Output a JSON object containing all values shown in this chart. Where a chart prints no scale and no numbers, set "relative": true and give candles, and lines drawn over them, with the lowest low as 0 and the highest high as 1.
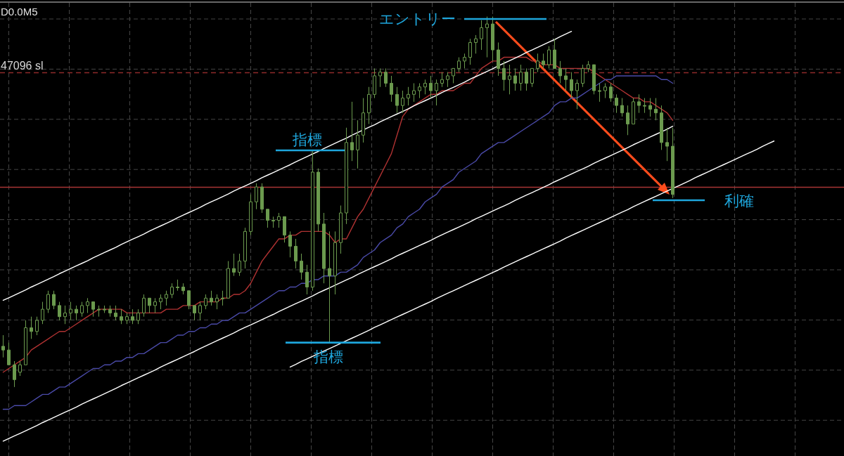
{
  "chart_data": {
    "type": "candlestick",
    "relative": true,
    "title": "D0.0M5",
    "grid": true,
    "color": "#6b9a4e",
    "categories": [
      null,
      null,
      null,
      null,
      null,
      null,
      null,
      null,
      null,
      null,
      null,
      null,
      null,
      null,
      null,
      null,
      null,
      null,
      null,
      null,
      null,
      null,
      null,
      null,
      null,
      null,
      null,
      null,
      null,
      null,
      null,
      null,
      null,
      null,
      null,
      null,
      null,
      null,
      null,
      null,
      null,
      null,
      null,
      null,
      null,
      null,
      null,
      null,
      null,
      null,
      null,
      null,
      null,
      null,
      null,
      null,
      null,
      null,
      null,
      null,
      null,
      null,
      null,
      null,
      null,
      null,
      null,
      null,
      null,
      null,
      null,
      null,
      null,
      null,
      null,
      null,
      null,
      null,
      null,
      null,
      null,
      null,
      null,
      null,
      null,
      null,
      null,
      null,
      null,
      null,
      null,
      null,
      null,
      null,
      null,
      null,
      null,
      null,
      null,
      null,
      null,
      null,
      null,
      null,
      null,
      null,
      null,
      null,
      null,
      null,
      null,
      null,
      null,
      null,
      null,
      null,
      null,
      null,
      null,
      null,
      null,
      null,
      null,
      null,
      null,
      null,
      null,
      null,
      null,
      null,
      null,
      null,
      null,
      null,
      null,
      null,
      null,
      null,
      null,
      null,
      null,
      null,
      null,
      null,
      null,
      null,
      null,
      null,
      null,
      null
    ],
    "ohlc": [
      [
        0.11,
        0.14,
        0.08,
        0.1
      ],
      [
        0.1,
        0.12,
        0.06,
        0.06
      ],
      [
        0.06,
        0.07,
        0.0,
        0.02
      ],
      [
        0.04,
        0.07,
        0.03,
        0.06
      ],
      [
        0.06,
        0.18,
        0.06,
        0.16
      ],
      [
        0.16,
        0.19,
        0.13,
        0.15
      ],
      [
        0.15,
        0.19,
        0.14,
        0.18
      ],
      [
        0.18,
        0.23,
        0.17,
        0.21
      ],
      [
        0.21,
        0.26,
        0.2,
        0.25
      ],
      [
        0.25,
        0.26,
        0.21,
        0.22
      ],
      [
        0.22,
        0.23,
        0.18,
        0.19
      ],
      [
        0.19,
        0.22,
        0.17,
        0.2
      ],
      [
        0.2,
        0.23,
        0.18,
        0.21
      ],
      [
        0.21,
        0.22,
        0.18,
        0.2
      ],
      [
        0.2,
        0.23,
        0.19,
        0.22
      ],
      [
        0.22,
        0.24,
        0.2,
        0.23
      ],
      [
        0.23,
        0.23,
        0.19,
        0.21
      ],
      [
        0.21,
        0.22,
        0.19,
        0.21
      ],
      [
        0.21,
        0.22,
        0.2,
        0.21
      ],
      [
        0.21,
        0.22,
        0.19,
        0.2
      ],
      [
        0.2,
        0.22,
        0.18,
        0.19
      ],
      [
        0.19,
        0.21,
        0.17,
        0.18
      ],
      [
        0.18,
        0.2,
        0.17,
        0.19
      ],
      [
        0.19,
        0.21,
        0.17,
        0.18
      ],
      [
        0.18,
        0.21,
        0.17,
        0.2
      ],
      [
        0.2,
        0.25,
        0.19,
        0.24
      ],
      [
        0.24,
        0.24,
        0.2,
        0.22
      ],
      [
        0.22,
        0.24,
        0.2,
        0.23
      ],
      [
        0.23,
        0.25,
        0.21,
        0.24
      ],
      [
        0.24,
        0.26,
        0.22,
        0.25
      ],
      [
        0.25,
        0.28,
        0.24,
        0.27
      ],
      [
        0.27,
        0.29,
        0.26,
        0.27
      ],
      [
        0.27,
        0.28,
        0.25,
        0.26
      ],
      [
        0.26,
        0.26,
        0.21,
        0.22
      ],
      [
        0.22,
        0.22,
        0.18,
        0.2
      ],
      [
        0.2,
        0.23,
        0.18,
        0.22
      ],
      [
        0.22,
        0.25,
        0.21,
        0.24
      ],
      [
        0.24,
        0.26,
        0.22,
        0.23
      ],
      [
        0.23,
        0.25,
        0.21,
        0.24
      ],
      [
        0.24,
        0.26,
        0.22,
        0.24
      ],
      [
        0.24,
        0.34,
        0.24,
        0.32
      ],
      [
        0.32,
        0.36,
        0.3,
        0.31
      ],
      [
        0.31,
        0.36,
        0.3,
        0.34
      ],
      [
        0.34,
        0.43,
        0.32,
        0.42
      ],
      [
        0.42,
        0.52,
        0.41,
        0.5
      ],
      [
        0.5,
        0.55,
        0.48,
        0.54
      ],
      [
        0.54,
        0.55,
        0.47,
        0.48
      ],
      [
        0.48,
        0.48,
        0.43,
        0.45
      ],
      [
        0.45,
        0.46,
        0.43,
        0.45
      ],
      [
        0.45,
        0.47,
        0.43,
        0.46
      ],
      [
        0.46,
        0.46,
        0.39,
        0.41
      ],
      [
        0.41,
        0.42,
        0.35,
        0.38
      ],
      [
        0.38,
        0.4,
        0.32,
        0.34
      ],
      [
        0.34,
        0.36,
        0.29,
        0.31
      ],
      [
        0.31,
        0.33,
        0.25,
        0.27
      ],
      [
        0.27,
        0.64,
        0.26,
        0.58
      ],
      [
        0.58,
        0.59,
        0.42,
        0.44
      ],
      [
        0.44,
        0.47,
        0.28,
        0.32
      ],
      [
        0.32,
        0.42,
        0.12,
        0.3
      ],
      [
        0.3,
        0.42,
        0.25,
        0.39
      ],
      [
        0.39,
        0.49,
        0.36,
        0.47
      ],
      [
        0.47,
        0.7,
        0.44,
        0.66
      ],
      [
        0.66,
        0.77,
        0.61,
        0.64
      ],
      [
        0.64,
        0.72,
        0.59,
        0.68
      ],
      [
        0.68,
        0.78,
        0.66,
        0.74
      ],
      [
        0.74,
        0.81,
        0.71,
        0.79
      ],
      [
        0.79,
        0.86,
        0.78,
        0.84
      ],
      [
        0.84,
        0.86,
        0.81,
        0.85
      ],
      [
        0.85,
        0.86,
        0.81,
        0.82
      ],
      [
        0.82,
        0.84,
        0.77,
        0.79
      ],
      [
        0.79,
        0.81,
        0.74,
        0.76
      ],
      [
        0.76,
        0.8,
        0.74,
        0.78
      ],
      [
        0.78,
        0.81,
        0.76,
        0.79
      ],
      [
        0.79,
        0.82,
        0.77,
        0.8
      ],
      [
        0.8,
        0.82,
        0.78,
        0.81
      ],
      [
        0.81,
        0.83,
        0.79,
        0.82
      ],
      [
        0.82,
        0.84,
        0.78,
        0.8
      ],
      [
        0.8,
        0.83,
        0.76,
        0.82
      ],
      [
        0.82,
        0.85,
        0.81,
        0.83
      ],
      [
        0.83,
        0.85,
        0.81,
        0.84
      ],
      [
        0.84,
        0.86,
        0.82,
        0.86
      ],
      [
        0.86,
        0.89,
        0.85,
        0.88
      ],
      [
        0.88,
        0.9,
        0.86,
        0.89
      ],
      [
        0.89,
        0.94,
        0.87,
        0.93
      ],
      [
        0.93,
        0.95,
        0.9,
        0.94
      ],
      [
        0.94,
        0.99,
        0.91,
        0.97
      ],
      [
        0.97,
        1.0,
        0.89,
        0.98
      ],
      [
        0.98,
        1.0,
        0.88,
        0.91
      ],
      [
        0.91,
        0.93,
        0.84,
        0.86
      ],
      [
        0.86,
        0.88,
        0.8,
        0.83
      ],
      [
        0.83,
        0.87,
        0.79,
        0.84
      ],
      [
        0.84,
        0.86,
        0.8,
        0.82
      ],
      [
        0.82,
        0.87,
        0.8,
        0.85
      ],
      [
        0.85,
        0.86,
        0.8,
        0.82
      ],
      [
        0.82,
        0.86,
        0.81,
        0.86
      ],
      [
        0.86,
        0.9,
        0.85,
        0.88
      ],
      [
        0.88,
        0.9,
        0.86,
        0.87
      ],
      [
        0.87,
        0.92,
        0.86,
        0.91
      ],
      [
        0.91,
        0.94,
        0.86,
        0.86
      ],
      [
        0.86,
        0.88,
        0.82,
        0.84
      ],
      [
        0.84,
        0.86,
        0.8,
        0.83
      ],
      [
        0.83,
        0.85,
        0.78,
        0.8
      ],
      [
        0.8,
        0.83,
        0.75,
        0.82
      ],
      [
        0.82,
        0.87,
        0.81,
        0.86
      ],
      [
        0.86,
        0.88,
        0.85,
        0.87
      ],
      [
        0.87,
        0.87,
        0.79,
        0.8
      ],
      [
        0.8,
        0.82,
        0.77,
        0.8
      ],
      [
        0.8,
        0.82,
        0.78,
        0.81
      ],
      [
        0.81,
        0.82,
        0.77,
        0.78
      ],
      [
        0.78,
        0.79,
        0.74,
        0.76
      ],
      [
        0.76,
        0.78,
        0.73,
        0.74
      ],
      [
        0.74,
        0.76,
        0.68,
        0.71
      ],
      [
        0.71,
        0.78,
        0.71,
        0.77
      ],
      [
        0.77,
        0.79,
        0.74,
        0.76
      ],
      [
        0.76,
        0.78,
        0.74,
        0.76
      ],
      [
        0.76,
        0.78,
        0.73,
        0.75
      ],
      [
        0.75,
        0.78,
        0.72,
        0.74
      ],
      [
        0.74,
        0.76,
        0.64,
        0.66
      ],
      [
        0.66,
        0.7,
        0.61,
        0.65
      ],
      [
        0.65,
        0.7,
        0.51,
        0.52
      ],
      null,
      null,
      null,
      null,
      null,
      null,
      null,
      null,
      null,
      null,
      null,
      null,
      null,
      null,
      null,
      null,
      null,
      null,
      null,
      null,
      null,
      null,
      null,
      null,
      null,
      null,
      null,
      null,
      null,
      null
    ],
    "series": [
      {
        "type": "line",
        "color": "#b03232",
        "values": [
          0.04,
          0.05,
          0.06,
          0.07,
          0.08,
          0.1,
          0.11,
          0.12,
          0.13,
          0.14,
          0.15,
          0.15,
          0.16,
          0.17,
          0.18,
          0.19,
          0.2,
          0.21,
          0.21,
          0.21,
          0.21,
          0.21,
          0.2,
          0.2,
          0.2,
          0.2,
          0.2,
          0.2,
          0.2,
          0.21,
          0.21,
          0.21,
          0.22,
          0.22,
          0.22,
          0.23,
          0.23,
          0.23,
          0.23,
          0.24,
          0.24,
          0.25,
          0.25,
          0.26,
          0.28,
          0.31,
          0.34,
          0.36,
          0.38,
          0.4,
          0.4,
          0.41,
          0.41,
          0.42,
          0.42,
          0.42,
          0.42,
          0.42,
          0.41,
          0.39,
          0.4,
          0.4,
          0.43,
          0.46,
          0.48,
          0.51,
          0.54,
          0.57,
          0.6,
          0.63,
          0.68,
          0.73,
          0.75,
          0.76,
          0.77,
          0.78,
          0.79,
          0.79,
          0.8,
          0.8,
          0.8,
          0.81,
          0.82,
          0.82,
          0.84,
          0.86,
          0.87,
          0.88,
          0.88,
          0.89,
          0.89,
          0.89,
          0.89,
          0.89,
          0.88,
          0.88,
          0.87,
          0.87,
          0.87,
          0.86,
          0.86,
          0.86,
          0.86,
          0.86,
          0.86,
          0.85,
          0.84,
          0.83,
          0.82,
          0.81,
          0.8,
          0.79,
          0.78,
          0.78,
          0.77,
          0.77,
          0.76,
          0.75,
          0.74,
          0.72,
          null,
          null,
          null,
          null,
          null,
          null,
          null,
          null,
          null,
          null,
          null,
          null,
          null,
          null,
          null,
          null,
          null,
          null,
          null,
          null,
          null,
          null,
          null,
          null,
          null,
          null,
          null,
          null,
          null,
          null
        ]
      },
      {
        "type": "line",
        "color": "#4a4aa8",
        "values": [
          -0.06,
          -0.06,
          -0.05,
          -0.05,
          -0.05,
          -0.04,
          -0.03,
          -0.02,
          -0.02,
          -0.01,
          0.0,
          0.0,
          0.01,
          0.02,
          0.03,
          0.04,
          0.05,
          0.05,
          0.06,
          0.06,
          0.07,
          0.07,
          0.08,
          0.08,
          0.09,
          0.09,
          0.1,
          0.11,
          0.12,
          0.12,
          0.13,
          0.14,
          0.14,
          0.15,
          0.15,
          0.16,
          0.16,
          0.17,
          0.17,
          0.18,
          0.18,
          0.19,
          0.2,
          0.2,
          0.21,
          0.22,
          0.23,
          0.24,
          0.25,
          0.26,
          0.26,
          0.27,
          0.27,
          0.28,
          0.28,
          0.29,
          0.29,
          0.3,
          0.3,
          0.3,
          0.31,
          0.31,
          0.32,
          0.33,
          0.35,
          0.36,
          0.37,
          0.39,
          0.4,
          0.41,
          0.43,
          0.44,
          0.46,
          0.47,
          0.48,
          0.5,
          0.51,
          0.52,
          0.54,
          0.55,
          0.56,
          0.58,
          0.59,
          0.6,
          0.61,
          0.63,
          0.64,
          0.65,
          0.66,
          0.66,
          0.67,
          0.68,
          0.69,
          0.7,
          0.71,
          0.72,
          0.73,
          0.74,
          0.76,
          0.77,
          0.77,
          0.78,
          0.78,
          0.79,
          0.8,
          0.81,
          0.82,
          0.83,
          0.83,
          0.84,
          0.84,
          0.84,
          0.84,
          0.84,
          0.84,
          0.84,
          0.84,
          0.83,
          0.83,
          0.82,
          null,
          null,
          null,
          null,
          null,
          null,
          null,
          null,
          null,
          null,
          null,
          null,
          null,
          null,
          null,
          null,
          null,
          null,
          null,
          null,
          null,
          null,
          null,
          null,
          null,
          null,
          null,
          null,
          null,
          null
        ]
      },
      {
        "type": "line",
        "color": "#ffffff",
        "values": [
          0.234,
          0.241,
          0.248,
          0.255,
          0.262,
          0.27,
          0.277,
          0.284,
          0.291,
          0.298,
          0.306,
          0.313,
          0.32,
          0.327,
          0.334,
          0.341,
          0.349,
          0.356,
          0.363,
          0.37,
          0.377,
          0.385,
          0.392,
          0.399,
          0.406,
          0.413,
          0.421,
          0.428,
          0.435,
          0.442,
          0.449,
          0.457,
          0.464,
          0.471,
          0.478,
          0.485,
          0.493,
          0.5,
          0.507,
          0.514,
          0.521,
          0.529,
          0.536,
          0.543,
          0.55,
          0.557,
          0.565,
          0.572,
          0.579,
          0.586,
          0.593,
          0.6,
          0.608,
          0.615,
          0.622,
          0.629,
          0.636,
          0.644,
          0.651,
          0.658,
          0.665,
          0.672,
          0.68,
          0.687,
          0.694,
          0.701,
          0.708,
          0.716,
          0.723,
          0.73,
          0.737,
          0.744,
          0.751,
          0.759,
          0.766,
          0.773,
          0.78,
          0.787,
          0.795,
          0.802,
          0.809,
          0.816,
          0.823,
          0.831,
          0.838,
          0.845,
          0.852,
          0.859,
          0.867,
          0.874,
          0.881,
          0.888,
          0.895,
          0.903,
          0.91,
          0.917,
          0.924,
          0.931,
          0.938,
          0.946,
          0.953,
          0.96,
          null,
          null,
          null,
          null,
          null,
          null,
          null,
          null,
          null,
          null,
          null,
          null,
          null,
          null,
          null,
          null,
          null,
          null,
          null,
          null,
          null,
          null,
          null,
          null,
          null,
          null,
          null,
          null,
          null,
          null,
          null,
          null,
          null,
          null,
          null,
          null,
          null,
          null,
          null,
          null,
          null,
          null,
          null,
          null,
          null,
          null,
          null,
          null
        ]
      },
      {
        "type": "line",
        "color": "#ffffff",
        "values": [
          -0.146,
          -0.139,
          -0.132,
          -0.125,
          -0.118,
          -0.111,
          -0.104,
          -0.096,
          -0.089,
          -0.082,
          -0.075,
          -0.068,
          -0.061,
          -0.054,
          -0.046,
          -0.039,
          -0.032,
          -0.025,
          -0.018,
          -0.011,
          -0.004,
          0.004,
          0.011,
          0.018,
          0.025,
          0.032,
          0.039,
          0.046,
          0.054,
          0.061,
          0.068,
          0.075,
          0.082,
          0.089,
          0.096,
          0.104,
          0.111,
          0.118,
          0.125,
          0.132,
          0.139,
          0.146,
          0.154,
          0.161,
          0.168,
          0.175,
          0.182,
          0.189,
          0.196,
          0.204,
          0.211,
          0.218,
          0.225,
          0.232,
          0.239,
          0.246,
          0.254,
          0.261,
          0.268,
          0.275,
          0.282,
          0.289,
          0.296,
          0.304,
          0.311,
          0.318,
          0.325,
          0.332,
          0.339,
          0.346,
          0.354,
          0.361,
          0.368,
          0.375,
          0.382,
          0.389,
          0.396,
          0.404,
          0.411,
          0.418,
          0.425,
          0.432,
          0.439,
          0.446,
          0.454,
          0.461,
          0.468,
          0.475,
          0.482,
          0.489,
          0.496,
          0.504,
          0.511,
          0.518,
          0.525,
          0.532,
          0.539,
          0.546,
          0.554,
          0.561,
          0.568,
          0.575,
          0.582,
          0.589,
          0.596,
          0.604,
          0.611,
          0.618,
          0.625,
          0.632,
          0.639,
          0.646,
          0.654,
          0.661,
          0.668,
          0.675,
          0.682,
          0.689,
          0.696,
          0.704,
          null,
          null,
          null,
          null,
          null,
          null,
          null,
          null,
          null,
          null,
          null,
          null,
          null,
          null,
          null,
          null,
          null,
          null,
          null,
          null,
          null,
          null,
          null,
          null,
          null,
          null,
          null,
          null,
          null,
          null
        ]
      },
      {
        "type": "line",
        "color": "#ffffff",
        "values": [
          null,
          null,
          null,
          null,
          null,
          null,
          null,
          null,
          null,
          null,
          null,
          null,
          null,
          null,
          null,
          null,
          null,
          null,
          null,
          null,
          null,
          null,
          null,
          null,
          null,
          null,
          null,
          null,
          null,
          null,
          null,
          null,
          null,
          null,
          null,
          null,
          null,
          null,
          null,
          null,
          null,
          null,
          null,
          null,
          null,
          null,
          null,
          null,
          null,
          null,
          null,
          0.054,
          0.061,
          0.069,
          0.076,
          0.083,
          0.09,
          0.097,
          0.104,
          0.111,
          0.118,
          0.125,
          0.132,
          0.139,
          0.146,
          0.153,
          0.161,
          0.168,
          0.175,
          0.182,
          0.189,
          0.196,
          0.203,
          0.21,
          0.217,
          0.224,
          0.231,
          0.239,
          0.246,
          0.253,
          0.26,
          0.267,
          0.274,
          0.281,
          0.288,
          0.295,
          0.302,
          0.309,
          0.316,
          0.324,
          0.331,
          0.338,
          0.345,
          0.352,
          0.359,
          0.366,
          0.373,
          0.38,
          0.387,
          0.394,
          0.402,
          0.409,
          0.416,
          0.423,
          0.43,
          0.437,
          0.444,
          0.451,
          0.458,
          0.465,
          0.472,
          0.479,
          0.487,
          0.494,
          0.501,
          0.508,
          0.515,
          0.522,
          0.529,
          0.536,
          0.543,
          0.55,
          0.557,
          0.565,
          0.572,
          0.579,
          0.586,
          0.593,
          0.6,
          0.607,
          0.614,
          0.621,
          0.628,
          0.635,
          0.642,
          0.65,
          0.657,
          0.664,
          null,
          null,
          null,
          null,
          null,
          null,
          null,
          null,
          null,
          null,
          null,
          null
        ]
      }
    ],
    "ref_lines": [
      {
        "axis": "y",
        "value": 0.85,
        "label": "47096 sl",
        "color": "#8e2a2a",
        "line_style": "dashed"
      },
      {
        "axis": "y",
        "value": 0.54,
        "color": "#a83434",
        "line_style": "solid"
      }
    ],
    "annotations": [
      "エントリー",
      "指標",
      {
        "text": "指標",
        "y": 0.12
      },
      "利確"
    ]
  }
}
